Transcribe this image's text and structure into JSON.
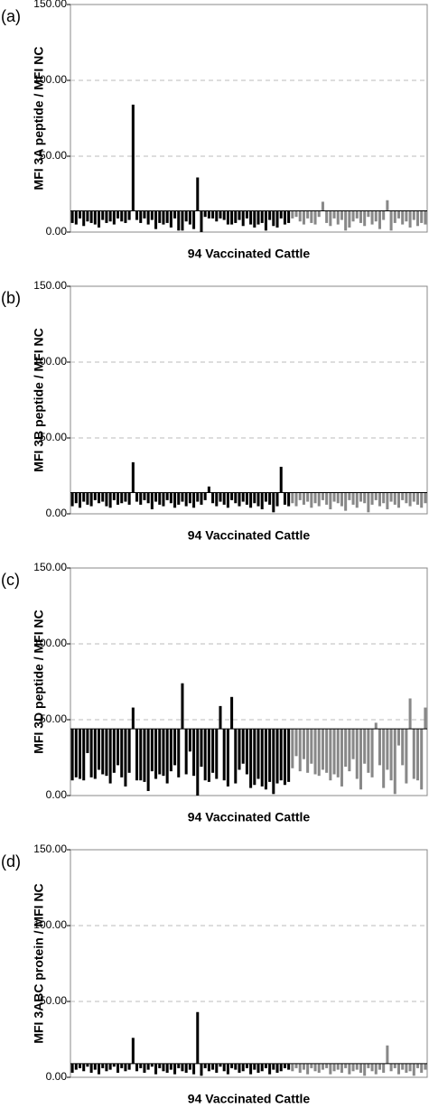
{
  "chart_data": [
    {
      "type": "bar",
      "panel_label": "(a)",
      "y_label": "MFI 3A peptide / MFI NC",
      "x_label": "94 Vaccinated Cattle",
      "threshold": 14,
      "ylim": [
        0,
        150
      ],
      "yticks": [
        {
          "value": 0,
          "label": "0.00"
        },
        {
          "value": 50,
          "label": "50.00"
        },
        {
          "value": 100,
          "label": "100.00"
        },
        {
          "value": 150,
          "label": "150.00"
        }
      ],
      "grid": true,
      "series": [
        {
          "color": "#000000",
          "values": [
            6,
            5,
            9,
            4,
            7,
            6,
            5,
            3,
            8,
            6,
            7,
            5,
            9,
            7,
            6,
            8,
            84,
            8,
            6,
            9,
            5,
            8,
            2,
            6,
            5,
            6,
            3,
            9,
            1,
            1,
            7,
            5,
            2,
            36,
            0,
            10,
            9,
            9,
            7,
            9,
            8,
            5,
            5,
            6,
            8,
            4,
            9,
            5,
            3,
            5,
            6,
            1,
            8,
            4,
            3,
            9,
            5,
            6
          ]
        },
        {
          "color": "#888888",
          "values": [
            9,
            10,
            7,
            5,
            9,
            6,
            5,
            10,
            20,
            6,
            4,
            9,
            5,
            8,
            1,
            3,
            7,
            9,
            6,
            4,
            10,
            5,
            7,
            2,
            8,
            21,
            1,
            6,
            9,
            5,
            7,
            3,
            8,
            4,
            6,
            5
          ]
        }
      ]
    },
    {
      "type": "bar",
      "panel_label": "(b)",
      "y_label": "MFI 3B peptide / MFI NC",
      "x_label": "94 Vaccinated Cattle",
      "threshold": 14,
      "ylim": [
        0,
        150
      ],
      "yticks": [
        {
          "value": 0,
          "label": "0.00"
        },
        {
          "value": 50,
          "label": "50.00"
        },
        {
          "value": 100,
          "label": "100.00"
        },
        {
          "value": 150,
          "label": "150.00"
        }
      ],
      "grid": true,
      "series": [
        {
          "color": "#000000",
          "values": [
            5,
            7,
            4,
            8,
            6,
            5,
            9,
            7,
            8,
            5,
            4,
            9,
            6,
            7,
            8,
            6,
            34,
            8,
            6,
            9,
            7,
            3,
            8,
            6,
            5,
            9,
            7,
            4,
            6,
            8,
            5,
            7,
            4,
            8,
            6,
            9,
            18,
            7,
            5,
            8,
            6,
            4,
            9,
            7,
            5,
            8,
            6,
            4,
            7,
            5,
            3,
            8,
            6,
            1,
            5,
            31,
            6,
            5
          ]
        },
        {
          "color": "#888888",
          "values": [
            7,
            5,
            9,
            6,
            8,
            4,
            7,
            5,
            9,
            6,
            3,
            8,
            7,
            5,
            2,
            9,
            6,
            4,
            8,
            7,
            1,
            6,
            9,
            5,
            7,
            3,
            8,
            6,
            4,
            9,
            7,
            5,
            8,
            6,
            4,
            7
          ]
        }
      ]
    },
    {
      "type": "bar",
      "panel_label": "(c)",
      "y_label": "MFI 3D peptide / MFI NC",
      "x_label": "94 Vaccinated Cattle",
      "threshold": 44,
      "ylim": [
        0,
        150
      ],
      "yticks": [
        {
          "value": 0,
          "label": "0.00"
        },
        {
          "value": 50,
          "label": "50.00"
        },
        {
          "value": 100,
          "label": "100.00"
        },
        {
          "value": 150,
          "label": "150.00"
        }
      ],
      "grid": true,
      "series": [
        {
          "color": "#000000",
          "values": [
            10,
            12,
            11,
            10,
            28,
            12,
            11,
            17,
            14,
            13,
            8,
            15,
            20,
            12,
            6,
            15,
            58,
            10,
            10,
            9,
            3,
            16,
            11,
            14,
            13,
            8,
            16,
            20,
            12,
            74,
            14,
            29,
            13,
            0,
            19,
            10,
            9,
            15,
            11,
            59,
            10,
            6,
            65,
            8,
            17,
            21,
            14,
            5,
            7,
            11,
            6,
            4,
            9,
            1,
            8,
            10,
            7,
            9
          ]
        },
        {
          "color": "#888888",
          "values": [
            18,
            26,
            16,
            24,
            15,
            21,
            14,
            13,
            17,
            15,
            10,
            14,
            12,
            6,
            19,
            16,
            24,
            11,
            4,
            21,
            15,
            12,
            48,
            20,
            5,
            17,
            10,
            1,
            33,
            20,
            8,
            64,
            11,
            10,
            4,
            58
          ]
        }
      ]
    },
    {
      "type": "bar",
      "panel_label": "(d)",
      "y_label": "MFI 3ABC protein / MFI NC",
      "x_label": "94 Vaccinated Cattle",
      "threshold": 9,
      "ylim": [
        0,
        150
      ],
      "yticks": [
        {
          "value": 0,
          "label": "0.00"
        },
        {
          "value": 50,
          "label": "50.00"
        },
        {
          "value": 100,
          "label": "100.00"
        },
        {
          "value": 150,
          "label": "150.00"
        }
      ],
      "grid": true,
      "series": [
        {
          "color": "#000000",
          "values": [
            3,
            5,
            6,
            4,
            7,
            3,
            5,
            2,
            6,
            4,
            5,
            7,
            3,
            6,
            4,
            5,
            26,
            4,
            6,
            3,
            5,
            7,
            2,
            6,
            4,
            3,
            5,
            2,
            6,
            4,
            3,
            5,
            2,
            43,
            1,
            6,
            4,
            5,
            3,
            7,
            4,
            2,
            6,
            5,
            3,
            4,
            6,
            2,
            5,
            3,
            4,
            6,
            2,
            5,
            3,
            4,
            6,
            5
          ]
        },
        {
          "color": "#888888",
          "values": [
            4,
            6,
            3,
            5,
            2,
            6,
            4,
            3,
            5,
            6,
            2,
            4,
            5,
            3,
            6,
            2,
            4,
            5,
            3,
            1,
            6,
            4,
            2,
            5,
            3,
            21,
            4,
            6,
            2,
            5,
            3,
            4,
            1,
            6,
            3,
            5
          ]
        }
      ]
    }
  ]
}
